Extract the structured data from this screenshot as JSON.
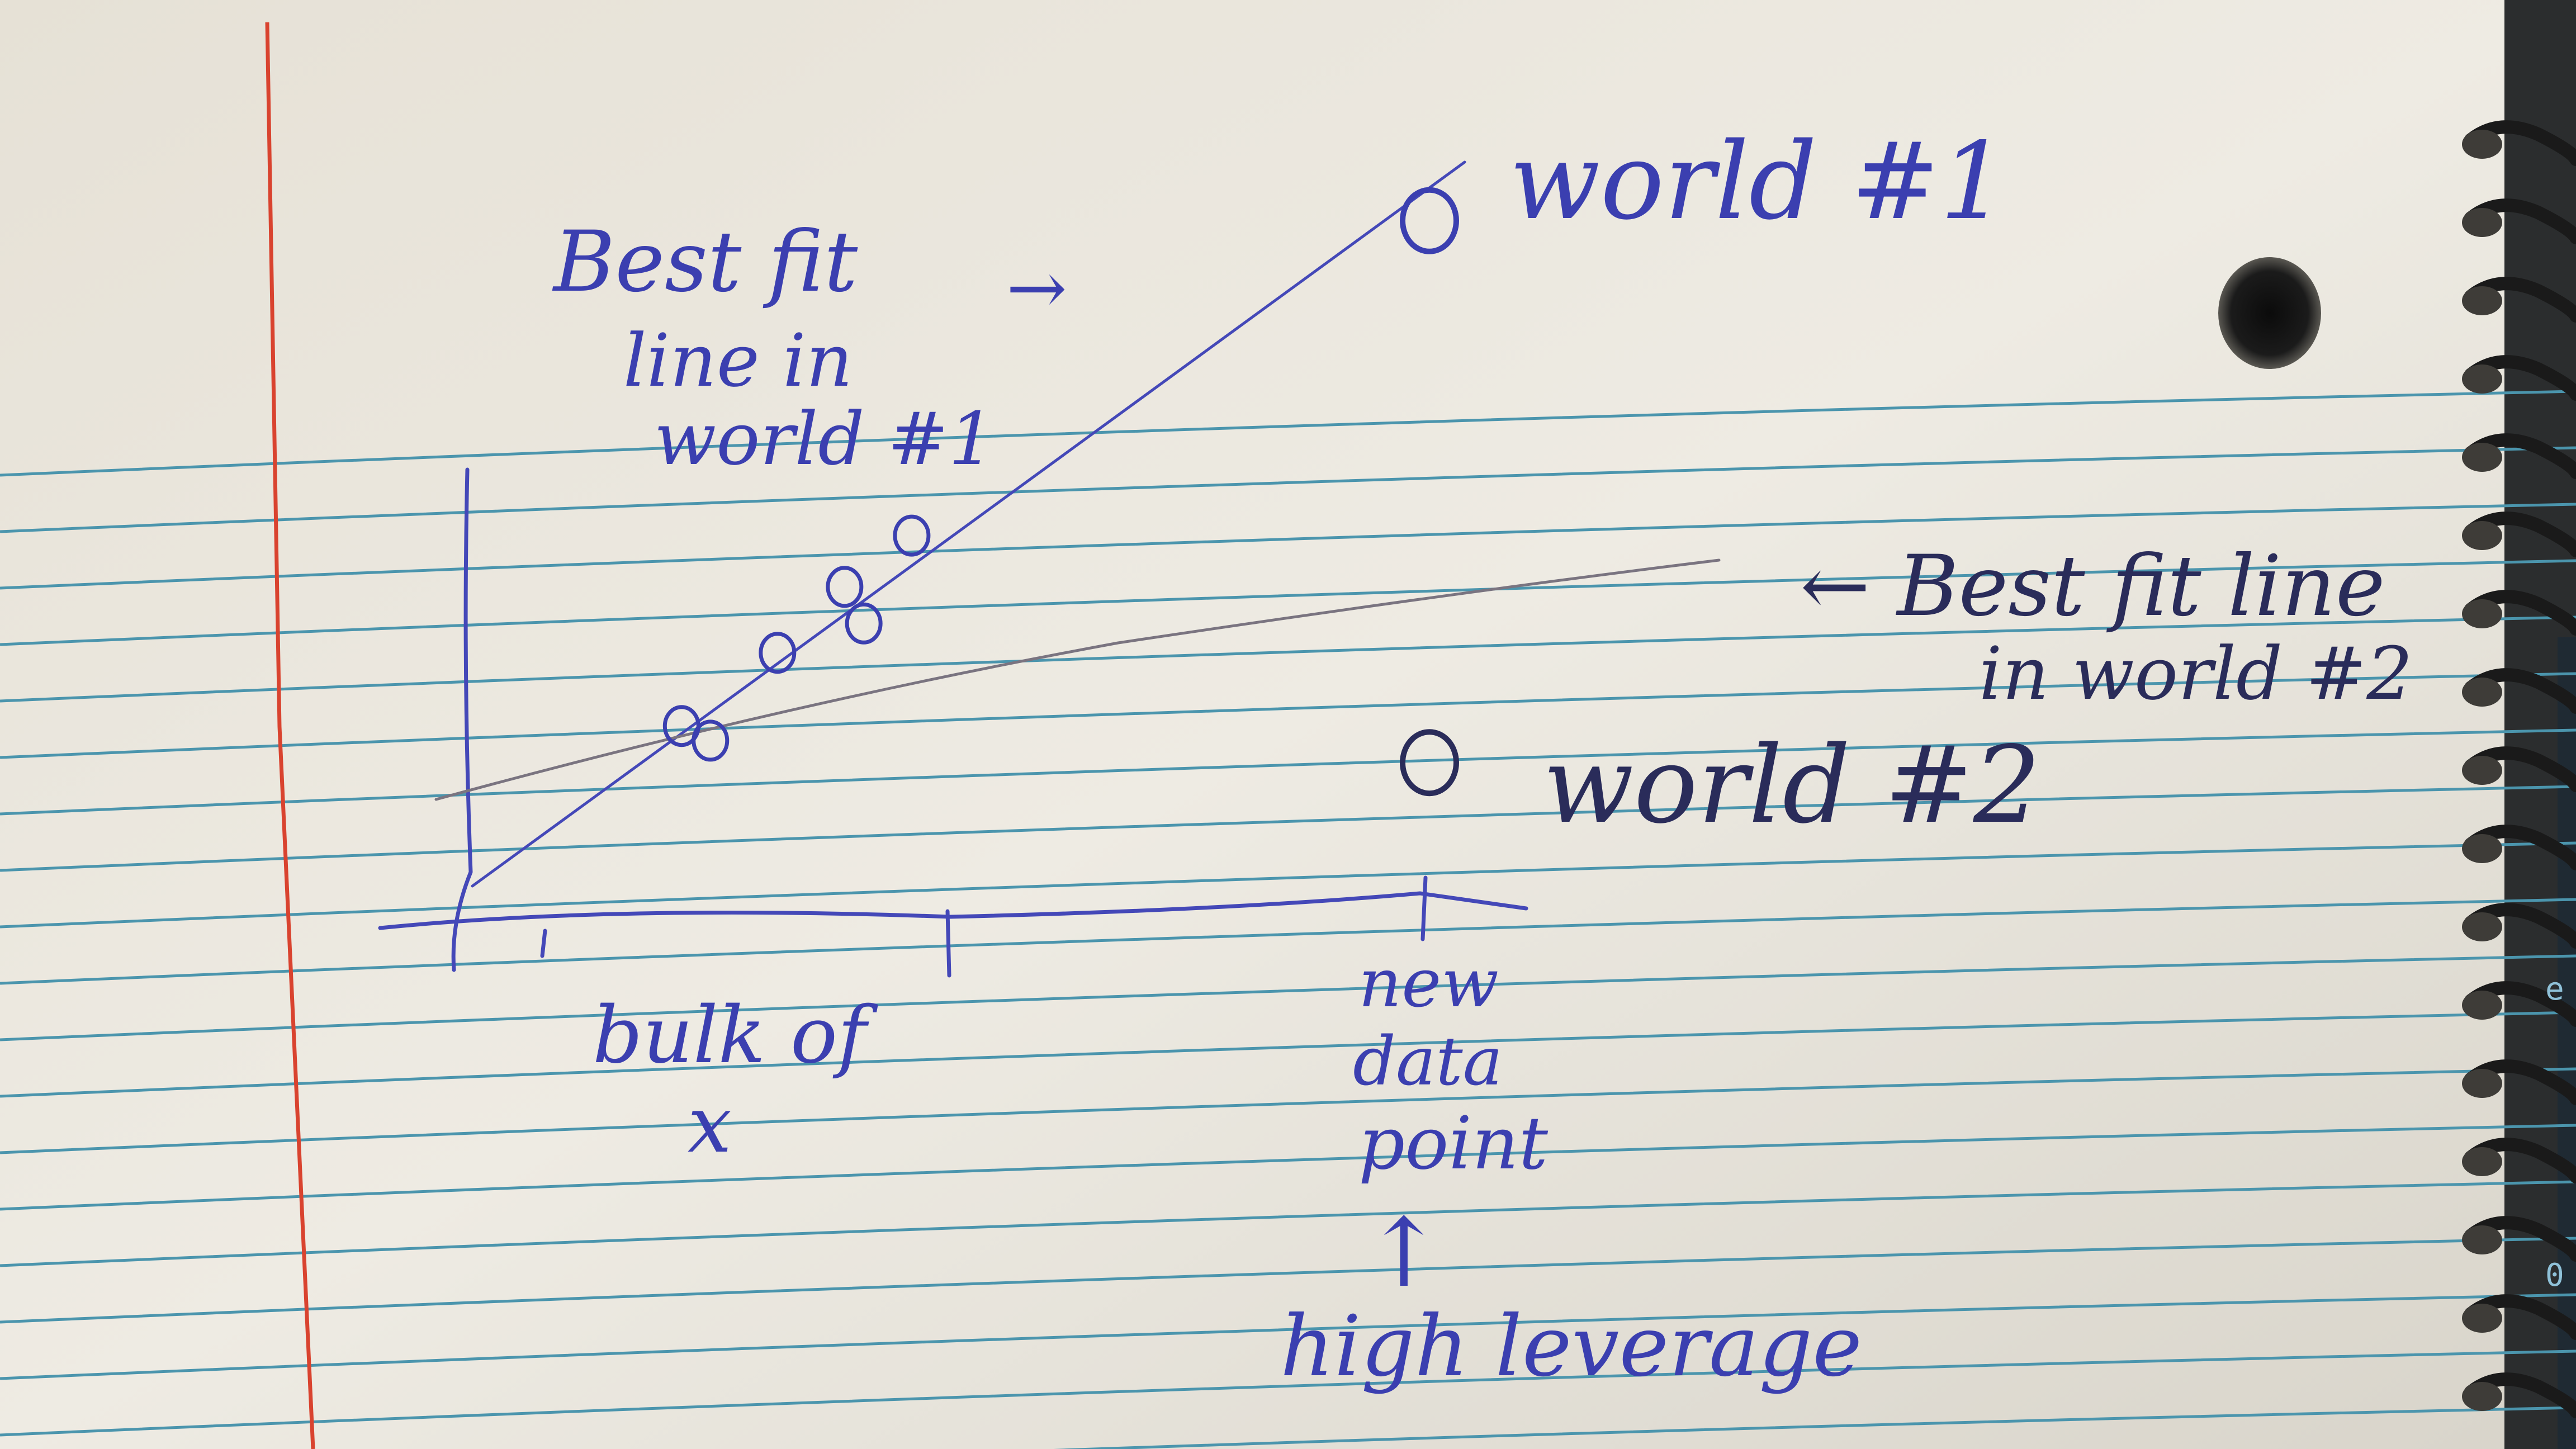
{
  "scene": {
    "description_kind": "photo of spiral notebook page with hand-drawn scatter plot",
    "colors": {
      "paper": "#ece8de",
      "rule_line": "#4b95ad",
      "margin_line": "#d9432f",
      "blue_ink": "#3b3fb0",
      "dark_ink": "#2a2c5a",
      "pencil": "#7a7480",
      "spiral": "#1a1a1a"
    }
  },
  "notes": {
    "world1_label": "world #1",
    "world2_label": "world #2",
    "fit1_annotation": [
      "Best fit",
      "line in",
      "world #1"
    ],
    "fit1_arrow": "→",
    "fit2_annotation": [
      "← Best fit line",
      "in world #2"
    ],
    "x_caption": [
      "bulk of",
      "x"
    ],
    "new_point_caption": [
      "new",
      "data",
      "point"
    ],
    "leverage_arrow": "↑",
    "leverage_caption": "high leverage"
  },
  "screen_edge": {
    "glyphs": [
      "e",
      "0"
    ]
  },
  "chart_data": {
    "type": "scatter",
    "title": "",
    "xlabel": "",
    "ylabel": "",
    "series": [
      {
        "name": "world #1",
        "points": [
          [
            2.2,
            2.3
          ],
          [
            2.5,
            2.1
          ],
          [
            3.2,
            3.3
          ],
          [
            3.9,
            4.2
          ],
          [
            4.1,
            3.7
          ],
          [
            4.6,
            4.9
          ],
          [
            10.0,
            9.2
          ]
        ]
      },
      {
        "name": "world #2",
        "points": [
          [
            2.2,
            2.3
          ],
          [
            2.5,
            2.1
          ],
          [
            3.2,
            3.3
          ],
          [
            3.9,
            4.2
          ],
          [
            4.1,
            3.7
          ],
          [
            4.6,
            4.9
          ],
          [
            10.0,
            1.8
          ]
        ]
      }
    ],
    "fit_lines": [
      {
        "name": "Best fit line in world #1",
        "slope": 0.9,
        "intercept": 0.2
      },
      {
        "name": "Best fit line in world #2",
        "slope": 0.25,
        "intercept": 1.4
      }
    ],
    "x_ticks": [
      1,
      4.5,
      10
    ],
    "xlim": [
      0,
      12
    ],
    "ylim": [
      0,
      10
    ],
    "grid": false
  }
}
